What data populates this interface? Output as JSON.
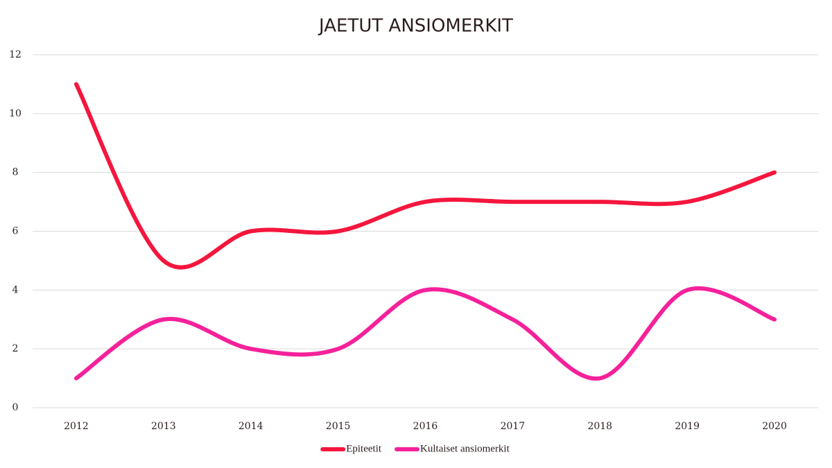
{
  "chart_data": {
    "type": "line",
    "title": "JAETUT ANSIOMERKIT",
    "categories": [
      "2012",
      "2013",
      "2014",
      "2015",
      "2016",
      "2017",
      "2018",
      "2019",
      "2020"
    ],
    "series": [
      {
        "name": "Epiteetit",
        "color": "#f5163d",
        "values": [
          11,
          5,
          6,
          6,
          7,
          7,
          7,
          7,
          8
        ]
      },
      {
        "name": "Kultaiset ansiomerkit",
        "color": "#f5219a",
        "values": [
          1,
          3,
          2,
          2,
          4,
          3,
          1,
          4,
          3
        ]
      }
    ],
    "ylim": [
      0,
      12
    ],
    "yticks": [
      0,
      2,
      4,
      6,
      8,
      10,
      12
    ],
    "grid": true,
    "smooth": true,
    "legend": "bottom"
  }
}
